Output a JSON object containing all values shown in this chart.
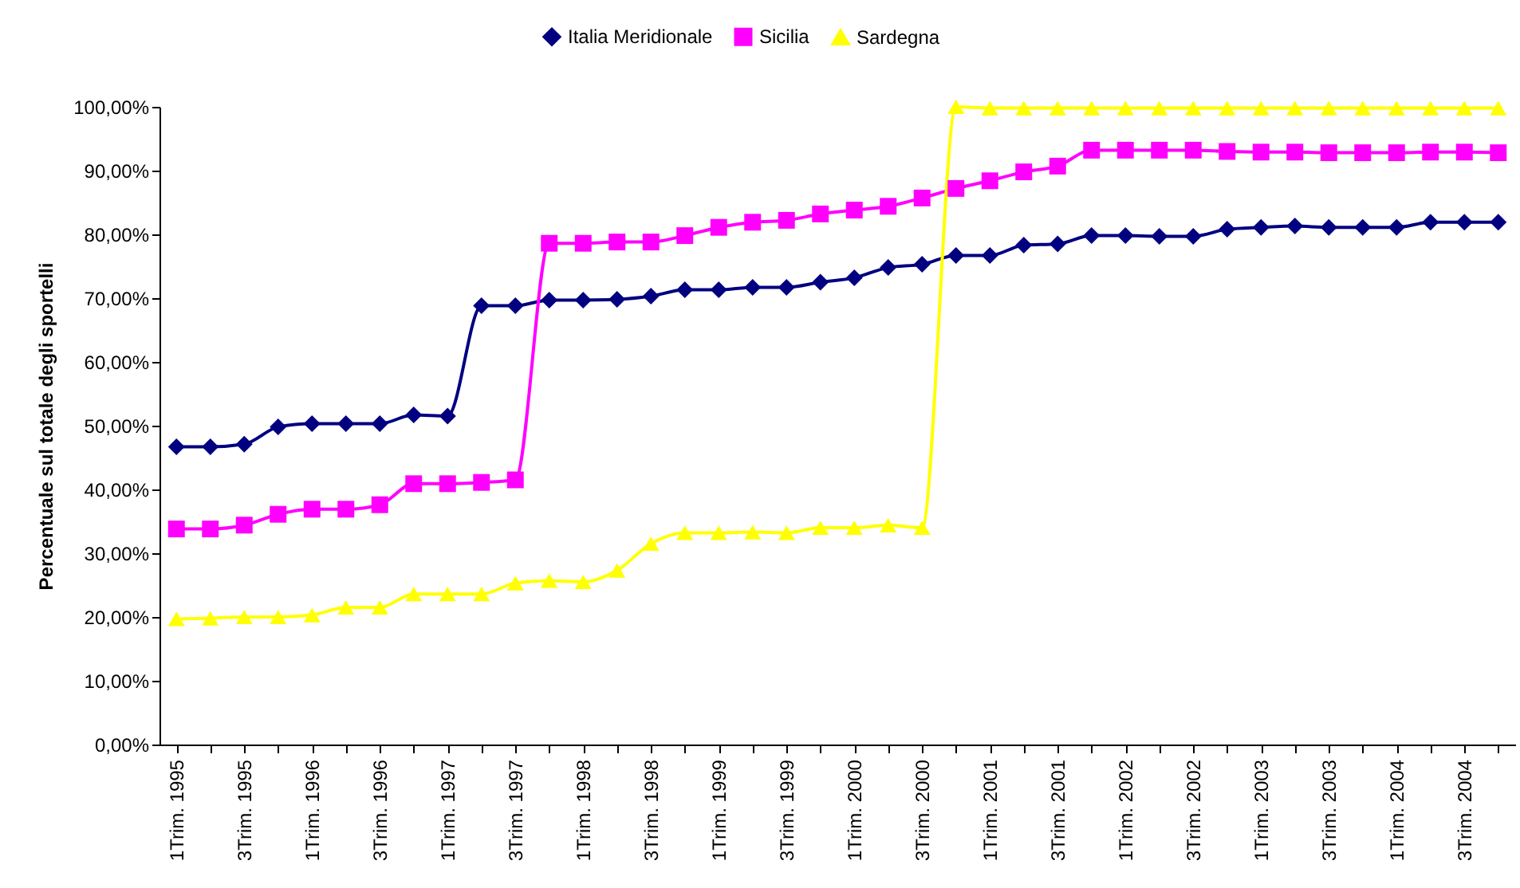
{
  "chart_data": {
    "type": "line",
    "ylabel": "Percentuale sul totale degli sportelli",
    "categories": [
      "1Trim. 1995",
      null,
      "3Trim. 1995",
      null,
      "1Trim. 1996",
      null,
      "3Trim. 1996",
      null,
      "1Trim. 1997",
      null,
      "3Trim. 1997",
      null,
      "1Trim. 1998",
      null,
      "3Trim. 1998",
      null,
      "1Trim. 1999",
      null,
      "3Trim. 1999",
      null,
      "1Trim. 2000",
      null,
      "3Trim. 2000",
      null,
      "1Trim. 2001",
      null,
      "3Trim. 2001",
      null,
      "1Trim. 2002",
      null,
      "3Trim. 2002",
      null,
      "1Trim. 2003",
      null,
      "3Trim. 2003",
      null,
      "1Trim. 2004",
      null,
      "3Trim. 2004",
      null
    ],
    "series": [
      {
        "name": "Italia Meridionale",
        "color": "#000080",
        "marker": "diamond",
        "values": [
          46.7,
          46.7,
          47.1,
          49.8,
          50.3,
          50.3,
          50.3,
          51.7,
          51.5,
          68.8,
          68.8,
          69.7,
          69.7,
          69.8,
          70.3,
          71.3,
          71.3,
          71.7,
          71.7,
          72.5,
          73.2,
          74.8,
          75.3,
          76.7,
          76.7,
          78.3,
          78.5,
          79.8,
          79.8,
          79.7,
          79.7,
          80.8,
          81.1,
          81.3,
          81.1,
          81.1,
          81.1,
          81.9,
          81.9,
          81.9
        ]
      },
      {
        "name": "Sicilia",
        "color": "#ff00ff",
        "marker": "square",
        "values": [
          33.8,
          33.8,
          34.4,
          36.1,
          36.9,
          36.9,
          37.6,
          40.9,
          40.9,
          41.1,
          41.5,
          78.6,
          78.6,
          78.8,
          78.8,
          79.8,
          81.1,
          81.9,
          82.2,
          83.2,
          83.8,
          84.4,
          85.7,
          87.2,
          88.4,
          89.8,
          90.7,
          93.2,
          93.2,
          93.2,
          93.2,
          93.0,
          92.9,
          92.9,
          92.8,
          92.8,
          92.8,
          92.9,
          92.9,
          92.8
        ]
      },
      {
        "name": "Sardegna",
        "color": "#ffff00",
        "marker": "triangle",
        "values": [
          19.7,
          19.8,
          20.0,
          20.0,
          20.3,
          21.5,
          21.5,
          23.6,
          23.6,
          23.6,
          25.3,
          25.7,
          25.5,
          27.3,
          31.5,
          33.2,
          33.2,
          33.3,
          33.2,
          34.0,
          34.0,
          34.4,
          34.0,
          100,
          99.8,
          99.8,
          99.8,
          99.8,
          99.8,
          99.8,
          99.8,
          99.8,
          99.8,
          99.8,
          99.8,
          99.8,
          99.8,
          99.8,
          99.8,
          99.8
        ]
      }
    ],
    "ylim": [
      0,
      100
    ],
    "yticks": [
      {
        "value": 0,
        "label": "0,00%"
      },
      {
        "value": 10,
        "label": "10,00%"
      },
      {
        "value": 20,
        "label": "20,00%"
      },
      {
        "value": 30,
        "label": "30,00%"
      },
      {
        "value": 40,
        "label": "40,00%"
      },
      {
        "value": 50,
        "label": "50,00%"
      },
      {
        "value": 60,
        "label": "60,00%"
      },
      {
        "value": 70,
        "label": "70,00%"
      },
      {
        "value": 80,
        "label": "80,00%"
      },
      {
        "value": 90,
        "label": "90,00%"
      },
      {
        "value": 100,
        "label": "100,00%"
      }
    ],
    "grid": false,
    "legend": "top",
    "line_style": "solid"
  }
}
